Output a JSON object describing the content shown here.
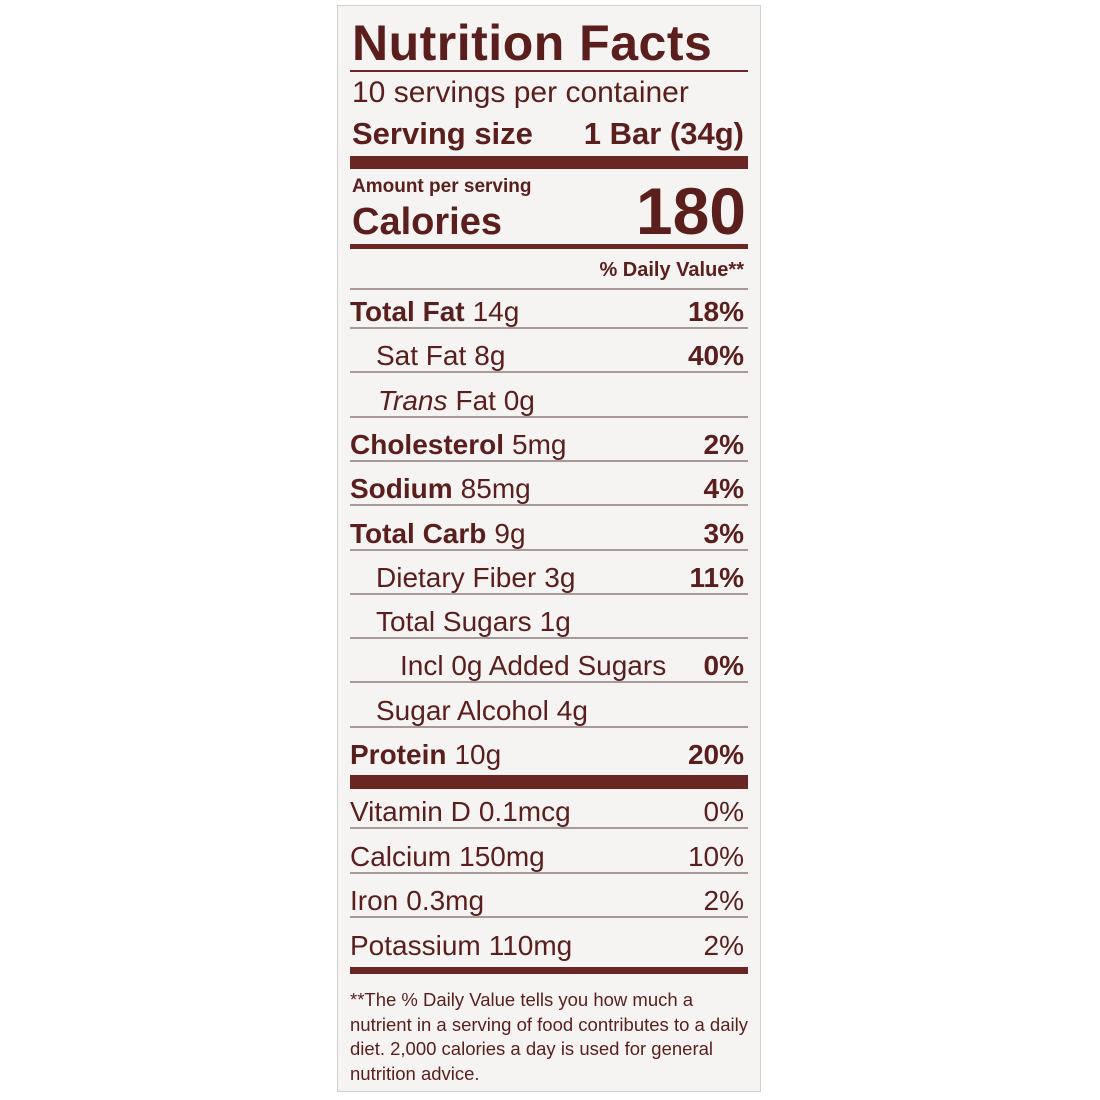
{
  "header": {
    "title": "Nutrition Facts",
    "servings": "10 servings per container",
    "serving_size_label": "Serving size",
    "serving_size_value": "1 Bar (34g)"
  },
  "calories": {
    "amount_per_serving": "Amount per serving",
    "label": "Calories",
    "value": "180"
  },
  "daily_value_header": "% Daily Value**",
  "nutrients": [
    {
      "name": "Total Fat",
      "amount": "14g",
      "dv": "18%"
    },
    {
      "name": "Sat Fat",
      "amount": "8g",
      "dv": "40%"
    },
    {
      "name": "Trans",
      "amount": "Fat 0g"
    },
    {
      "name": "Cholesterol",
      "amount": "5mg",
      "dv": "2%"
    },
    {
      "name": "Sodium",
      "amount": "85mg",
      "dv": "4%"
    },
    {
      "name": "Total Carb",
      "amount": "9g",
      "dv": "3%"
    },
    {
      "name": "Dietary Fiber",
      "amount": "3g",
      "dv": "11%"
    },
    {
      "name": "Total Sugars",
      "amount": "1g"
    },
    {
      "name": "Incl 0g Added Sugars",
      "dv": "0%"
    },
    {
      "name": "Sugar Alcohol",
      "amount": "4g"
    },
    {
      "name": "Protein",
      "amount": "10g",
      "dv": "20%"
    }
  ],
  "vitamins": [
    {
      "name": "Vitamin D",
      "amount": "0.1mcg",
      "dv": "0%"
    },
    {
      "name": "Calcium",
      "amount": "150mg",
      "dv": "10%"
    },
    {
      "name": "Iron",
      "amount": "0.3mg",
      "dv": "2%"
    },
    {
      "name": "Potassium",
      "amount": "110mg",
      "dv": "2%"
    }
  ],
  "footnote": "**The % Daily Value tells you how much a nutrient in a serving of food contributes to a daily diet. 2,000 calories a day is used for general nutrition advice."
}
